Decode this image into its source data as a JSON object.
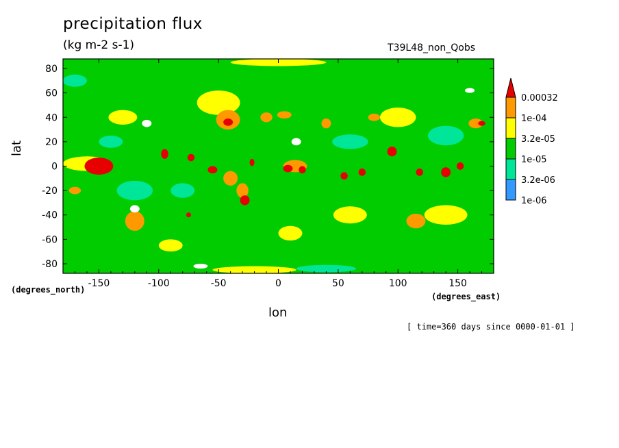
{
  "chart_data": {
    "type": "heatmap",
    "title": "precipitation flux",
    "units": "(kg m-2 s-1)",
    "run_label": "T39L48_non_Qobs",
    "xlabel": "lon",
    "xlabel_units": "(degrees_east)",
    "ylabel": "lat",
    "ylabel_units": "(degrees_north)",
    "timestamp": "[ time=360 days since 0000-01-01 ]",
    "xlim": [
      -180,
      180
    ],
    "ylim": [
      -87.86,
      87.86
    ],
    "xticks": [
      -150,
      -100,
      -50,
      0,
      50,
      100,
      150
    ],
    "xtick_labels": [
      "-150",
      "-100",
      "-50",
      "0",
      "50",
      "100",
      "150"
    ],
    "yticks": [
      -80,
      -60,
      -40,
      -20,
      0,
      20,
      40,
      60,
      80
    ],
    "ytick_labels": [
      "-80",
      "-60",
      "-40",
      "-20",
      "0",
      "20",
      "40",
      "60",
      "80"
    ],
    "colorbar": {
      "levels": [
        1e-06,
        3.2e-06,
        1e-05,
        3.2e-05,
        0.0001,
        0.00032
      ],
      "labels": [
        "1e-06",
        "3.2e-06",
        "1e-05",
        "3.2e-05",
        "1e-04",
        "0.00032"
      ],
      "colors": [
        "#3399ff",
        "#00e699",
        "#00cc00",
        "#ffff00",
        "#ff9900",
        "#e60000"
      ],
      "below_color": "#ffffff",
      "extend": "max"
    },
    "background_color": "#00cc00",
    "features": [
      {
        "lon": -150,
        "lat": 0,
        "level": 5,
        "rx": 12,
        "ry": 7
      },
      {
        "lon": -160,
        "lat": 2,
        "level": 3,
        "rx": 20,
        "ry": 6
      },
      {
        "lon": -95,
        "lat": 10,
        "level": 5,
        "rx": 3,
        "ry": 4
      },
      {
        "lon": -73,
        "lat": 7,
        "level": 5,
        "rx": 3,
        "ry": 3
      },
      {
        "lon": -55,
        "lat": -3,
        "level": 5,
        "rx": 4,
        "ry": 3
      },
      {
        "lon": -40,
        "lat": -10,
        "level": 4,
        "rx": 6,
        "ry": 6
      },
      {
        "lon": -28,
        "lat": -28,
        "level": 5,
        "rx": 4,
        "ry": 4
      },
      {
        "lon": -30,
        "lat": -20,
        "level": 4,
        "rx": 5,
        "ry": 6
      },
      {
        "lon": -22,
        "lat": 3,
        "level": 5,
        "rx": 2,
        "ry": 3
      },
      {
        "lon": -42,
        "lat": 36,
        "level": 5,
        "rx": 4,
        "ry": 3
      },
      {
        "lon": -42,
        "lat": 38,
        "level": 4,
        "rx": 10,
        "ry": 8
      },
      {
        "lon": -50,
        "lat": 52,
        "level": 3,
        "rx": 18,
        "ry": 10
      },
      {
        "lon": -10,
        "lat": 40,
        "level": 4,
        "rx": 5,
        "ry": 4
      },
      {
        "lon": 5,
        "lat": 42,
        "level": 4,
        "rx": 6,
        "ry": 3
      },
      {
        "lon": 8,
        "lat": -2,
        "level": 5,
        "rx": 4,
        "ry": 3
      },
      {
        "lon": 20,
        "lat": -3,
        "level": 5,
        "rx": 3,
        "ry": 3
      },
      {
        "lon": 14,
        "lat": 0,
        "level": 4,
        "rx": 10,
        "ry": 5
      },
      {
        "lon": 40,
        "lat": 35,
        "level": 4,
        "rx": 4,
        "ry": 4
      },
      {
        "lon": 55,
        "lat": -8,
        "level": 5,
        "rx": 3,
        "ry": 3
      },
      {
        "lon": 70,
        "lat": -5,
        "level": 5,
        "rx": 3,
        "ry": 3
      },
      {
        "lon": 95,
        "lat": 12,
        "level": 5,
        "rx": 4,
        "ry": 4
      },
      {
        "lon": 118,
        "lat": -5,
        "level": 5,
        "rx": 3,
        "ry": 3
      },
      {
        "lon": 140,
        "lat": -5,
        "level": 5,
        "rx": 4,
        "ry": 4
      },
      {
        "lon": 152,
        "lat": 0,
        "level": 5,
        "rx": 3,
        "ry": 3
      },
      {
        "lon": 170,
        "lat": 35,
        "level": 5,
        "rx": 3,
        "ry": 2
      },
      {
        "lon": 165,
        "lat": 35,
        "level": 4,
        "rx": 6,
        "ry": 4
      },
      {
        "lon": -75,
        "lat": -40,
        "level": 5,
        "rx": 2,
        "ry": 2
      },
      {
        "lon": -120,
        "lat": -45,
        "level": 4,
        "rx": 8,
        "ry": 8
      },
      {
        "lon": -170,
        "lat": -20,
        "level": 4,
        "rx": 5,
        "ry": 3
      },
      {
        "lon": 80,
        "lat": 40,
        "level": 4,
        "rx": 5,
        "ry": 3
      },
      {
        "lon": 115,
        "lat": -45,
        "level": 4,
        "rx": 8,
        "ry": 6
      },
      {
        "lon": 140,
        "lat": -40,
        "level": 3,
        "rx": 18,
        "ry": 8
      },
      {
        "lon": 60,
        "lat": -40,
        "level": 3,
        "rx": 14,
        "ry": 7
      },
      {
        "lon": 100,
        "lat": 40,
        "level": 3,
        "rx": 15,
        "ry": 8
      },
      {
        "lon": -130,
        "lat": 40,
        "level": 3,
        "rx": 12,
        "ry": 6
      },
      {
        "lon": -90,
        "lat": -65,
        "level": 3,
        "rx": 10,
        "ry": 5
      },
      {
        "lon": 10,
        "lat": -55,
        "level": 3,
        "rx": 10,
        "ry": 6
      },
      {
        "lon": 0,
        "lat": 85,
        "level": 3,
        "rx": 40,
        "ry": 3
      },
      {
        "lon": -20,
        "lat": -85,
        "level": 3,
        "rx": 35,
        "ry": 3
      },
      {
        "lon": 40,
        "lat": -84,
        "level": 1,
        "rx": 25,
        "ry": 3
      },
      {
        "lon": -140,
        "lat": 20,
        "level": 1,
        "rx": 10,
        "ry": 5
      },
      {
        "lon": -120,
        "lat": -20,
        "level": 1,
        "rx": 15,
        "ry": 8
      },
      {
        "lon": -80,
        "lat": -20,
        "level": 1,
        "rx": 10,
        "ry": 6
      },
      {
        "lon": 60,
        "lat": 20,
        "level": 1,
        "rx": 15,
        "ry": 6
      },
      {
        "lon": -170,
        "lat": 70,
        "level": 1,
        "rx": 10,
        "ry": 5
      },
      {
        "lon": 140,
        "lat": 25,
        "level": 1,
        "rx": 15,
        "ry": 8
      },
      {
        "lon": -90,
        "lat": 30,
        "level": 2,
        "rx": 15,
        "ry": 8
      },
      {
        "lon": 20,
        "lat": -30,
        "level": 2,
        "rx": 12,
        "ry": 8
      },
      {
        "lon": 160,
        "lat": 75,
        "level": 2,
        "rx": 10,
        "ry": 6
      },
      {
        "lon": 15,
        "lat": 20,
        "level": 0,
        "rx": 4,
        "ry": 3
      },
      {
        "lon": -120,
        "lat": -35,
        "level": 0,
        "rx": 4,
        "ry": 3
      },
      {
        "lon": -110,
        "lat": 35,
        "level": 0,
        "rx": 4,
        "ry": 3
      },
      {
        "lon": -65,
        "lat": -82,
        "level": 0,
        "rx": 6,
        "ry": 2
      },
      {
        "lon": 160,
        "lat": 62,
        "level": 0,
        "rx": 4,
        "ry": 2
      }
    ]
  }
}
